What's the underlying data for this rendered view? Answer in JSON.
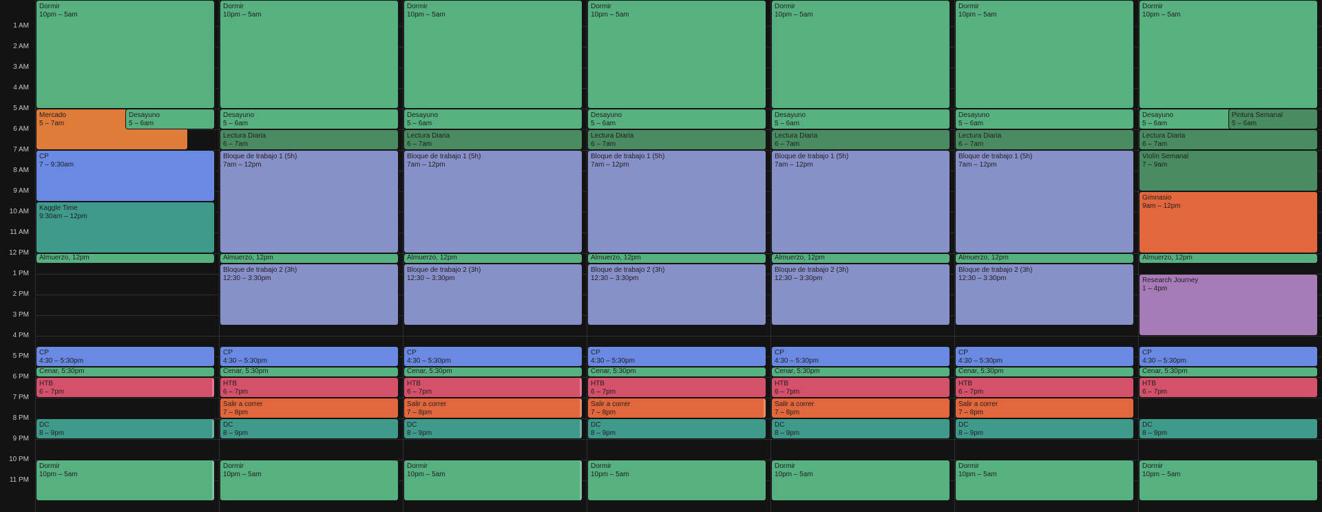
{
  "hours": [
    "1 AM",
    "2 AM",
    "3 AM",
    "4 AM",
    "5 AM",
    "6 AM",
    "7 AM",
    "8 AM",
    "9 AM",
    "10 AM",
    "11 AM",
    "12 PM",
    "1 PM",
    "2 PM",
    "3 PM",
    "4 PM",
    "5 PM",
    "6 PM",
    "7 PM",
    "8 PM",
    "9 PM",
    "10 PM",
    "11 PM"
  ],
  "days": [
    {
      "events": [
        {
          "title": "Dormir",
          "time": "10pm – 5am",
          "start": -1,
          "end": 5,
          "color": "c-green",
          "col": 0,
          "cols": 1
        },
        {
          "title": "Mercado",
          "time": "5 – 7am",
          "start": 5,
          "end": 7,
          "color": "c-orange",
          "col": 0,
          "cols": 1,
          "widthFrac": 0.85
        },
        {
          "title": "Desayuno",
          "time": "5 – 6am",
          "start": 5,
          "end": 6,
          "color": "c-green",
          "col": 0,
          "cols": 1,
          "leftFrac": 0.5,
          "widthFrac": 0.5
        },
        {
          "title": "CP",
          "time": "7 – 9:30am",
          "start": 7,
          "end": 9.5,
          "color": "c-blue",
          "col": 0,
          "cols": 1
        },
        {
          "title": "Kaggle Time",
          "time": "9:30am – 12pm",
          "start": 9.5,
          "end": 12,
          "color": "c-teal",
          "col": 0,
          "cols": 1
        },
        {
          "title": "Almuerzo",
          "time": "12pm",
          "start": 12,
          "end": 12.5,
          "color": "c-green",
          "col": 0,
          "cols": 1,
          "inline": true
        },
        {
          "title": "CP",
          "time": "4:30 – 5:30pm",
          "start": 16.5,
          "end": 17.5,
          "color": "c-blue",
          "col": 0,
          "cols": 1
        },
        {
          "title": "Cenar",
          "time": "5:30pm",
          "start": 17.5,
          "end": 18,
          "color": "c-green",
          "col": 0,
          "cols": 1,
          "inline": true
        },
        {
          "title": "HTB",
          "time": "6 – 7pm",
          "start": 18,
          "end": 19,
          "color": "c-red",
          "col": 0,
          "cols": 1,
          "strip": true
        },
        {
          "title": "DC",
          "time": "8 – 9pm",
          "start": 20,
          "end": 21,
          "color": "c-teal",
          "col": 0,
          "cols": 1,
          "strip": true
        },
        {
          "title": "Dormir",
          "time": "10pm – 5am",
          "start": 22,
          "end": 24,
          "color": "c-green",
          "col": 0,
          "cols": 1,
          "strip": true
        }
      ]
    },
    {
      "events": [
        {
          "title": "Dormir",
          "time": "10pm – 5am",
          "start": -1,
          "end": 5,
          "color": "c-green"
        },
        {
          "title": "Desayuno",
          "time": "5 – 6am",
          "start": 5,
          "end": 6,
          "color": "c-green"
        },
        {
          "title": "Lectura Diaria",
          "time": "6 – 7am",
          "start": 6,
          "end": 7,
          "color": "c-dgreen"
        },
        {
          "title": "Bloque de trabajo 1 (5h)",
          "time": "7am – 12pm",
          "start": 7,
          "end": 12,
          "color": "c-lav"
        },
        {
          "title": "Almuerzo",
          "time": "12pm",
          "start": 12,
          "end": 12.5,
          "color": "c-green",
          "inline": true
        },
        {
          "title": "Bloque de trabajo 2 (3h)",
          "time": "12:30 – 3:30pm",
          "start": 12.5,
          "end": 15.5,
          "color": "c-lav"
        },
        {
          "title": "CP",
          "time": "4:30 – 5:30pm",
          "start": 16.5,
          "end": 17.5,
          "color": "c-blue"
        },
        {
          "title": "Cenar",
          "time": "5:30pm",
          "start": 17.5,
          "end": 18,
          "color": "c-green",
          "inline": true
        },
        {
          "title": "HTB",
          "time": "6 – 7pm",
          "start": 18,
          "end": 19,
          "color": "c-red"
        },
        {
          "title": "Salir a correr",
          "time": "7 – 8pm",
          "start": 19,
          "end": 20,
          "color": "c-oorange"
        },
        {
          "title": "DC",
          "time": "8 – 9pm",
          "start": 20,
          "end": 21,
          "color": "c-teal"
        },
        {
          "title": "Dormir",
          "time": "10pm – 5am",
          "start": 22,
          "end": 24,
          "color": "c-green"
        }
      ]
    },
    {
      "events": [
        {
          "title": "Dormir",
          "time": "10pm – 5am",
          "start": -1,
          "end": 5,
          "color": "c-green"
        },
        {
          "title": "Desayuno",
          "time": "5 – 6am",
          "start": 5,
          "end": 6,
          "color": "c-green"
        },
        {
          "title": "Lectura Diaria",
          "time": "6 – 7am",
          "start": 6,
          "end": 7,
          "color": "c-dgreen"
        },
        {
          "title": "Bloque de trabajo 1 (5h)",
          "time": "7am – 12pm",
          "start": 7,
          "end": 12,
          "color": "c-lav"
        },
        {
          "title": "Almuerzo",
          "time": "12pm",
          "start": 12,
          "end": 12.5,
          "color": "c-green",
          "inline": true
        },
        {
          "title": "Bloque de trabajo 2 (3h)",
          "time": "12:30 – 3:30pm",
          "start": 12.5,
          "end": 15.5,
          "color": "c-lav"
        },
        {
          "title": "CP",
          "time": "4:30 – 5:30pm",
          "start": 16.5,
          "end": 17.5,
          "color": "c-blue"
        },
        {
          "title": "Cenar",
          "time": "5:30pm",
          "start": 17.5,
          "end": 18,
          "color": "c-green",
          "inline": true
        },
        {
          "title": "HTB",
          "time": "6 – 7pm",
          "start": 18,
          "end": 19,
          "color": "c-red",
          "strip": true
        },
        {
          "title": "Salir a correr",
          "time": "7 – 8pm",
          "start": 19,
          "end": 20,
          "color": "c-oorange",
          "strip": true
        },
        {
          "title": "DC",
          "time": "8 – 9pm",
          "start": 20,
          "end": 21,
          "color": "c-teal",
          "strip": true
        },
        {
          "title": "Dormir",
          "time": "10pm – 5am",
          "start": 22,
          "end": 24,
          "color": "c-green",
          "strip": true
        }
      ]
    },
    {
      "events": [
        {
          "title": "Dormir",
          "time": "10pm – 5am",
          "start": -1,
          "end": 5,
          "color": "c-green"
        },
        {
          "title": "Desayuno",
          "time": "5 – 6am",
          "start": 5,
          "end": 6,
          "color": "c-green"
        },
        {
          "title": "Lectura Diaria",
          "time": "6 – 7am",
          "start": 6,
          "end": 7,
          "color": "c-dgreen"
        },
        {
          "title": "Bloque de trabajo 1 (5h)",
          "time": "7am – 12pm",
          "start": 7,
          "end": 12,
          "color": "c-lav"
        },
        {
          "title": "Almuerzo",
          "time": "12pm",
          "start": 12,
          "end": 12.5,
          "color": "c-green",
          "inline": true
        },
        {
          "title": "Bloque de trabajo 2 (3h)",
          "time": "12:30 – 3:30pm",
          "start": 12.5,
          "end": 15.5,
          "color": "c-lav"
        },
        {
          "title": "CP",
          "time": "4:30 – 5:30pm",
          "start": 16.5,
          "end": 17.5,
          "color": "c-blue"
        },
        {
          "title": "Cenar",
          "time": "5:30pm",
          "start": 17.5,
          "end": 18,
          "color": "c-green",
          "inline": true
        },
        {
          "title": "HTB",
          "time": "6 – 7pm",
          "start": 18,
          "end": 19,
          "color": "c-red"
        },
        {
          "title": "Salir a correr",
          "time": "7 – 8pm",
          "start": 19,
          "end": 20,
          "color": "c-oorange",
          "strip": true
        },
        {
          "title": "DC",
          "time": "8 – 9pm",
          "start": 20,
          "end": 21,
          "color": "c-teal"
        },
        {
          "title": "Dormir",
          "time": "10pm – 5am",
          "start": 22,
          "end": 24,
          "color": "c-green"
        }
      ]
    },
    {
      "events": [
        {
          "title": "Dormir",
          "time": "10pm – 5am",
          "start": -1,
          "end": 5,
          "color": "c-green"
        },
        {
          "title": "Desayuno",
          "time": "5 – 6am",
          "start": 5,
          "end": 6,
          "color": "c-green"
        },
        {
          "title": "Lectura Diaria",
          "time": "6 – 7am",
          "start": 6,
          "end": 7,
          "color": "c-dgreen"
        },
        {
          "title": "Bloque de trabajo 1 (5h)",
          "time": "7am – 12pm",
          "start": 7,
          "end": 12,
          "color": "c-lav"
        },
        {
          "title": "Almuerzo",
          "time": "12pm",
          "start": 12,
          "end": 12.5,
          "color": "c-green",
          "inline": true
        },
        {
          "title": "Bloque de trabajo 2 (3h)",
          "time": "12:30 – 3:30pm",
          "start": 12.5,
          "end": 15.5,
          "color": "c-lav"
        },
        {
          "title": "CP",
          "time": "4:30 – 5:30pm",
          "start": 16.5,
          "end": 17.5,
          "color": "c-blue"
        },
        {
          "title": "Cenar",
          "time": "5:30pm",
          "start": 17.5,
          "end": 18,
          "color": "c-green",
          "inline": true
        },
        {
          "title": "HTB",
          "time": "6 – 7pm",
          "start": 18,
          "end": 19,
          "color": "c-red"
        },
        {
          "title": "Salir a correr",
          "time": "7 – 8pm",
          "start": 19,
          "end": 20,
          "color": "c-oorange"
        },
        {
          "title": "DC",
          "time": "8 – 9pm",
          "start": 20,
          "end": 21,
          "color": "c-teal"
        },
        {
          "title": "Dormir",
          "time": "10pm – 5am",
          "start": 22,
          "end": 24,
          "color": "c-green"
        }
      ]
    },
    {
      "events": [
        {
          "title": "Dormir",
          "time": "10pm – 5am",
          "start": -1,
          "end": 5,
          "color": "c-green"
        },
        {
          "title": "Desayuno",
          "time": "5 – 6am",
          "start": 5,
          "end": 6,
          "color": "c-green"
        },
        {
          "title": "Lectura Diaria",
          "time": "6 – 7am",
          "start": 6,
          "end": 7,
          "color": "c-dgreen"
        },
        {
          "title": "Bloque de trabajo 1 (5h)",
          "time": "7am – 12pm",
          "start": 7,
          "end": 12,
          "color": "c-lav"
        },
        {
          "title": "Almuerzo",
          "time": "12pm",
          "start": 12,
          "end": 12.5,
          "color": "c-green",
          "inline": true
        },
        {
          "title": "Bloque de trabajo 2 (3h)",
          "time": "12:30 – 3:30pm",
          "start": 12.5,
          "end": 15.5,
          "color": "c-lav"
        },
        {
          "title": "CP",
          "time": "4:30 – 5:30pm",
          "start": 16.5,
          "end": 17.5,
          "color": "c-blue"
        },
        {
          "title": "Cenar",
          "time": "5:30pm",
          "start": 17.5,
          "end": 18,
          "color": "c-green",
          "inline": true
        },
        {
          "title": "HTB",
          "time": "6 – 7pm",
          "start": 18,
          "end": 19,
          "color": "c-red"
        },
        {
          "title": "Salir a correr",
          "time": "7 – 8pm",
          "start": 19,
          "end": 20,
          "color": "c-oorange"
        },
        {
          "title": "DC",
          "time": "8 – 9pm",
          "start": 20,
          "end": 21,
          "color": "c-teal"
        },
        {
          "title": "Dormir",
          "time": "10pm – 5am",
          "start": 22,
          "end": 24,
          "color": "c-green"
        }
      ]
    },
    {
      "events": [
        {
          "title": "Dormir",
          "time": "10pm – 5am",
          "start": -1,
          "end": 5,
          "color": "c-green"
        },
        {
          "title": "Desayuno",
          "time": "5 – 6am",
          "start": 5,
          "end": 6,
          "color": "c-green"
        },
        {
          "title": "Pintura Semanal",
          "time": "5 – 6am",
          "start": 5,
          "end": 6,
          "color": "c-dgreen",
          "leftFrac": 0.5,
          "widthFrac": 0.5
        },
        {
          "title": "Lectura Diaria",
          "time": "6 – 7am",
          "start": 6,
          "end": 7,
          "color": "c-dgreen"
        },
        {
          "title": "Violín Semanal",
          "time": "7 – 9am",
          "start": 7,
          "end": 9,
          "color": "c-dgreen"
        },
        {
          "title": "Gimnasio",
          "time": "9am – 12pm",
          "start": 9,
          "end": 12,
          "color": "c-oorange"
        },
        {
          "title": "Almuerzo",
          "time": "12pm",
          "start": 12,
          "end": 12.5,
          "color": "c-green",
          "inline": true
        },
        {
          "title": "Research Journey",
          "time": "1 – 4pm",
          "start": 13,
          "end": 16,
          "color": "c-purple"
        },
        {
          "title": "CP",
          "time": "4:30 – 5:30pm",
          "start": 16.5,
          "end": 17.5,
          "color": "c-blue"
        },
        {
          "title": "Cenar",
          "time": "5:30pm",
          "start": 17.5,
          "end": 18,
          "color": "c-green",
          "inline": true
        },
        {
          "title": "HTB",
          "time": "6 – 7pm",
          "start": 18,
          "end": 19,
          "color": "c-red"
        },
        {
          "title": "DC",
          "time": "8 – 9pm",
          "start": 20,
          "end": 21,
          "color": "c-teal"
        },
        {
          "title": "Dormir",
          "time": "10pm – 5am",
          "start": 22,
          "end": 24,
          "color": "c-green"
        }
      ]
    }
  ]
}
